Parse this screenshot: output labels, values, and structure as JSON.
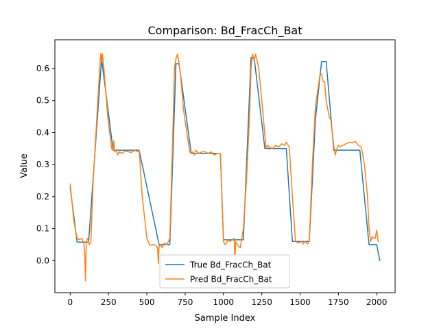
{
  "chart_data": {
    "type": "line",
    "title": "Comparison: Bd_FracCh_Bat",
    "xlabel": "Sample Index",
    "ylabel": "Value",
    "xlim": [
      -100,
      2120
    ],
    "ylim": [
      -0.1,
      0.69
    ],
    "xticks": [
      0,
      250,
      500,
      750,
      1000,
      1250,
      1500,
      1750,
      2000
    ],
    "yticks": [
      0.0,
      0.1,
      0.2,
      0.3,
      0.4,
      0.5,
      0.6
    ],
    "ytick_labels": [
      "0.0",
      "0.1",
      "0.2",
      "0.3",
      "0.4",
      "0.5",
      "0.6"
    ],
    "grid": false,
    "legend_position": "lower-center",
    "series": [
      {
        "name": "True Bd_FracCh_Bat",
        "color": "#1f77b4",
        "x": [
          0,
          45,
          120,
          205,
          280,
          450,
          580,
          650,
          690,
          710,
          790,
          980,
          1000,
          1090,
          1130,
          1180,
          1200,
          1270,
          1410,
          1450,
          1560,
          1600,
          1640,
          1670,
          1720,
          1770,
          1890,
          1950,
          2000,
          2020
        ],
        "y": [
          0.23,
          0.058,
          0.058,
          0.63,
          0.345,
          0.345,
          0.05,
          0.05,
          0.615,
          0.615,
          0.335,
          0.335,
          0.065,
          0.065,
          0.065,
          0.635,
          0.635,
          0.35,
          0.35,
          0.06,
          0.06,
          0.44,
          0.622,
          0.622,
          0.345,
          0.345,
          0.345,
          0.05,
          0.05,
          0.0
        ]
      },
      {
        "name": "Pred Bd_FracCh_Bat",
        "color": "#ff7f0e",
        "x": [
          0,
          25,
          45,
          60,
          75,
          85,
          90,
          95,
          100,
          105,
          115,
          125,
          135,
          150,
          180,
          195,
          200,
          205,
          210,
          220,
          245,
          270,
          280,
          285,
          290,
          300,
          310,
          320,
          340,
          360,
          380,
          400,
          420,
          440,
          450,
          470,
          500,
          520,
          540,
          560,
          570,
          575,
          580,
          590,
          600,
          615,
          630,
          650,
          670,
          680,
          690,
          700,
          710,
          720,
          740,
          770,
          780,
          790,
          800,
          810,
          820,
          840,
          860,
          880,
          900,
          920,
          940,
          960,
          980,
          1000,
          1010,
          1020,
          1030,
          1040,
          1060,
          1070,
          1075,
          1080,
          1090,
          1110,
          1130,
          1150,
          1170,
          1180,
          1190,
          1200,
          1210,
          1230,
          1260,
          1270,
          1280,
          1290,
          1300,
          1320,
          1340,
          1360,
          1380,
          1400,
          1410,
          1430,
          1450,
          1470,
          1490,
          1510,
          1520,
          1530,
          1550,
          1560,
          1580,
          1600,
          1630,
          1640,
          1650,
          1660,
          1670,
          1690,
          1700,
          1710,
          1720,
          1730,
          1740,
          1750,
          1760,
          1780,
          1800,
          1820,
          1840,
          1860,
          1880,
          1900,
          1920,
          1940,
          1950,
          1960,
          1970,
          1980,
          1990,
          2000,
          2010
        ],
        "y": [
          0.24,
          0.12,
          0.07,
          0.065,
          0.07,
          0.06,
          0.05,
          0.02,
          -0.063,
          0.06,
          0.07,
          0.05,
          0.06,
          0.25,
          0.5,
          0.62,
          0.648,
          0.62,
          0.645,
          0.6,
          0.45,
          0.35,
          0.345,
          0.375,
          0.34,
          0.345,
          0.33,
          0.34,
          0.335,
          0.343,
          0.34,
          0.338,
          0.345,
          0.34,
          0.345,
          0.2,
          0.07,
          0.048,
          0.05,
          0.048,
          0.04,
          -0.01,
          0.045,
          0.05,
          0.04,
          0.055,
          0.05,
          0.07,
          0.4,
          0.6,
          0.63,
          0.645,
          0.62,
          0.58,
          0.47,
          0.37,
          0.34,
          0.335,
          0.34,
          0.33,
          0.345,
          0.335,
          0.34,
          0.34,
          0.335,
          0.34,
          0.33,
          0.335,
          0.335,
          0.06,
          0.05,
          0.055,
          0.065,
          0.06,
          0.065,
          0.07,
          0.0,
          0.06,
          0.05,
          0.04,
          0.1,
          0.25,
          0.45,
          0.6,
          0.645,
          0.625,
          0.645,
          0.6,
          0.45,
          0.39,
          0.35,
          0.36,
          0.355,
          0.35,
          0.36,
          0.355,
          0.365,
          0.36,
          0.37,
          0.355,
          0.2,
          0.06,
          0.055,
          0.06,
          0.052,
          0.06,
          0.052,
          0.06,
          0.3,
          0.48,
          0.58,
          0.583,
          0.56,
          0.56,
          0.5,
          0.45,
          0.44,
          0.4,
          0.36,
          0.33,
          0.35,
          0.36,
          0.355,
          0.36,
          0.365,
          0.37,
          0.368,
          0.372,
          0.36,
          0.355,
          0.3,
          0.2,
          0.1,
          0.06,
          0.075,
          0.07,
          0.07,
          0.095,
          0.06
        ]
      }
    ]
  }
}
